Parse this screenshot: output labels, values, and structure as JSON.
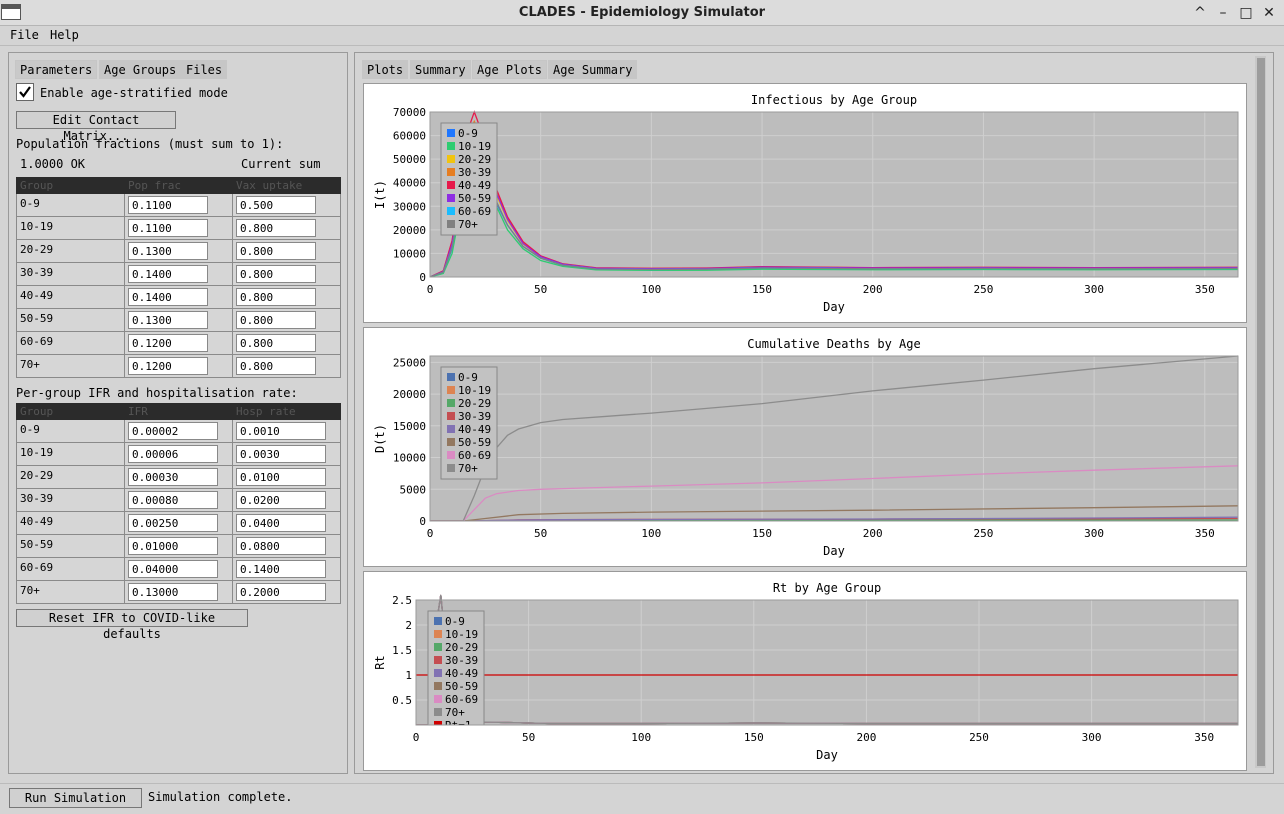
{
  "window": {
    "title": "CLADES - Epidemiology Simulator",
    "min_glyph": "–",
    "max_glyph": "□",
    "restore_glyph": "^",
    "close_glyph": "✕"
  },
  "menu": {
    "file": "File",
    "help": "Help"
  },
  "left_tabs": [
    "Parameters",
    "Age Groups",
    "Files"
  ],
  "age_mode": {
    "label": "Enable age-stratified mode",
    "checked": true
  },
  "edit_matrix_button": "Edit Contact Matrix...",
  "pop_section": {
    "heading": "Population fractions (must sum to 1):",
    "sum_value": "1.0000 OK",
    "sum_label": "Current sum",
    "headers": [
      "Group",
      "Pop frac",
      "Vax uptake"
    ],
    "rows": [
      {
        "group": "0-9",
        "pop": "0.1100",
        "vax": "0.500"
      },
      {
        "group": "10-19",
        "pop": "0.1100",
        "vax": "0.800"
      },
      {
        "group": "20-29",
        "pop": "0.1300",
        "vax": "0.800"
      },
      {
        "group": "30-39",
        "pop": "0.1400",
        "vax": "0.800"
      },
      {
        "group": "40-49",
        "pop": "0.1400",
        "vax": "0.800"
      },
      {
        "group": "50-59",
        "pop": "0.1300",
        "vax": "0.800"
      },
      {
        "group": "60-69",
        "pop": "0.1200",
        "vax": "0.800"
      },
      {
        "group": "70+",
        "pop": "0.1200",
        "vax": "0.800"
      }
    ]
  },
  "ifr_section": {
    "heading": "Per-group IFR and hospitalisation rate:",
    "headers": [
      "Group",
      "IFR",
      "Hosp rate"
    ],
    "rows": [
      {
        "group": "0-9",
        "ifr": "0.00002",
        "hosp": "0.0010"
      },
      {
        "group": "10-19",
        "ifr": "0.00006",
        "hosp": "0.0030"
      },
      {
        "group": "20-29",
        "ifr": "0.00030",
        "hosp": "0.0100"
      },
      {
        "group": "30-39",
        "ifr": "0.00080",
        "hosp": "0.0200"
      },
      {
        "group": "40-49",
        "ifr": "0.00250",
        "hosp": "0.0400"
      },
      {
        "group": "50-59",
        "ifr": "0.01000",
        "hosp": "0.0800"
      },
      {
        "group": "60-69",
        "ifr": "0.04000",
        "hosp": "0.1400"
      },
      {
        "group": "70+",
        "ifr": "0.13000",
        "hosp": "0.2000"
      }
    ]
  },
  "reset_button": "Reset IFR to COVID-like defaults",
  "right_tabs": [
    "Plots",
    "Summary",
    "Age Plots",
    "Age Summary"
  ],
  "status": {
    "run_button": "Run Simulation",
    "message": "Simulation complete."
  },
  "chart_data": [
    {
      "type": "line",
      "title": "Infectious by Age Group",
      "xlabel": "Day",
      "ylabel": "I(t)",
      "xlim": [
        0,
        365
      ],
      "ylim": [
        0,
        70000
      ],
      "xticks": [
        0,
        50,
        100,
        150,
        200,
        250,
        300,
        350
      ],
      "yticks": [
        0,
        10000,
        20000,
        30000,
        40000,
        50000,
        60000,
        70000
      ],
      "grid": true,
      "legend": "top-left",
      "series": [
        {
          "name": "0-9",
          "color": "#1f77ff",
          "x": [
            0,
            6,
            10,
            14,
            17,
            20,
            24,
            28,
            35,
            42,
            50,
            60,
            75,
            100,
            125,
            150,
            200,
            250,
            300,
            365
          ],
          "y": [
            0,
            2000,
            12000,
            32000,
            48000,
            52000,
            47000,
            35000,
            22000,
            13000,
            8000,
            5000,
            3300,
            3000,
            3100,
            3600,
            3300,
            3400,
            3300,
            3400
          ]
        },
        {
          "name": "10-19",
          "color": "#2ecc71",
          "x": [
            0,
            6,
            10,
            14,
            17,
            20,
            24,
            28,
            35,
            42,
            50,
            60,
            75,
            100,
            125,
            150,
            200,
            250,
            300,
            365
          ],
          "y": [
            0,
            1500,
            10000,
            30000,
            45000,
            50000,
            46000,
            34000,
            20000,
            12000,
            7000,
            4500,
            3000,
            2800,
            2900,
            3300,
            3100,
            3200,
            3100,
            3200
          ]
        },
        {
          "name": "20-29",
          "color": "#f1c40f",
          "x": [
            0,
            6,
            10,
            14,
            17,
            20,
            24,
            28,
            35,
            42,
            50,
            60,
            75,
            100,
            125,
            150,
            200,
            250,
            300,
            365
          ],
          "y": [
            0,
            2200,
            14000,
            36000,
            54000,
            60000,
            54000,
            39000,
            24000,
            14000,
            8500,
            5300,
            3600,
            3400,
            3500,
            4100,
            3700,
            3800,
            3700,
            3800
          ]
        },
        {
          "name": "30-39",
          "color": "#e67e22",
          "x": [
            0,
            6,
            10,
            14,
            17,
            20,
            24,
            28,
            35,
            42,
            50,
            60,
            75,
            100,
            125,
            150,
            200,
            250,
            300,
            365
          ],
          "y": [
            0,
            2500,
            15000,
            40000,
            60000,
            66000,
            58000,
            41000,
            25000,
            14500,
            8800,
            5500,
            3800,
            3600,
            3700,
            4300,
            3900,
            4000,
            3900,
            4000
          ]
        },
        {
          "name": "40-49",
          "color": "#e6194b",
          "x": [
            0,
            6,
            10,
            14,
            17,
            20,
            24,
            28,
            35,
            42,
            50,
            60,
            75,
            100,
            125,
            150,
            200,
            250,
            300,
            365
          ],
          "y": [
            0,
            2600,
            15500,
            41000,
            62000,
            70000,
            60000,
            42000,
            25500,
            15000,
            9000,
            5600,
            3900,
            3700,
            3800,
            4400,
            4000,
            4100,
            4000,
            4100
          ]
        },
        {
          "name": "50-59",
          "color": "#8e2de2",
          "x": [
            0,
            6,
            10,
            14,
            17,
            20,
            24,
            28,
            35,
            42,
            50,
            60,
            75,
            100,
            125,
            150,
            200,
            250,
            300,
            365
          ],
          "y": [
            0,
            2300,
            14000,
            37000,
            55000,
            61000,
            55000,
            40000,
            24500,
            14200,
            8600,
            5400,
            3700,
            3500,
            3600,
            4200,
            3800,
            3900,
            3800,
            3900
          ]
        },
        {
          "name": "60-69",
          "color": "#1abcfe",
          "x": [
            0,
            6,
            10,
            14,
            17,
            20,
            24,
            28,
            35,
            42,
            50,
            60,
            75,
            100,
            125,
            150,
            200,
            250,
            300,
            365
          ],
          "y": [
            0,
            2000,
            12500,
            33000,
            50000,
            55000,
            50000,
            36000,
            22000,
            13000,
            8000,
            5000,
            3400,
            3200,
            3300,
            3800,
            3500,
            3600,
            3500,
            3600
          ]
        },
        {
          "name": "70+",
          "color": "#808080",
          "x": [
            0,
            6,
            10,
            14,
            17,
            20,
            24,
            28,
            35,
            42,
            50,
            60,
            75,
            100,
            125,
            150,
            200,
            250,
            300,
            365
          ],
          "y": [
            0,
            2000,
            12500,
            33000,
            49000,
            54000,
            49000,
            36000,
            22000,
            13000,
            8000,
            5000,
            3400,
            3200,
            3300,
            3800,
            3500,
            3600,
            3500,
            3600
          ]
        }
      ]
    },
    {
      "type": "line",
      "title": "Cumulative Deaths by Age",
      "xlabel": "Day",
      "ylabel": "D(t)",
      "xlim": [
        0,
        365
      ],
      "ylim": [
        0,
        26000
      ],
      "xticks": [
        0,
        50,
        100,
        150,
        200,
        250,
        300,
        350
      ],
      "yticks": [
        0,
        5000,
        10000,
        15000,
        20000,
        25000
      ],
      "grid": true,
      "legend": "top-left",
      "series": [
        {
          "name": "0-9",
          "color": "#4c72b0",
          "x": [
            0,
            15,
            25,
            40,
            60,
            100,
            200,
            300,
            365
          ],
          "y": [
            0,
            0,
            2,
            5,
            6,
            7,
            9,
            11,
            12
          ]
        },
        {
          "name": "10-19",
          "color": "#dd8452",
          "x": [
            0,
            15,
            25,
            40,
            60,
            100,
            200,
            300,
            365
          ],
          "y": [
            0,
            0,
            5,
            14,
            18,
            20,
            25,
            30,
            33
          ]
        },
        {
          "name": "20-29",
          "color": "#55a868",
          "x": [
            0,
            15,
            25,
            40,
            60,
            100,
            200,
            300,
            365
          ],
          "y": [
            0,
            0,
            25,
            70,
            85,
            95,
            120,
            140,
            155
          ]
        },
        {
          "name": "30-39",
          "color": "#c44e52",
          "x": [
            0,
            15,
            25,
            40,
            60,
            100,
            200,
            300,
            365
          ],
          "y": [
            0,
            0,
            60,
            180,
            220,
            245,
            300,
            350,
            390
          ]
        },
        {
          "name": "40-49",
          "color": "#8172b3",
          "x": [
            0,
            15,
            25,
            40,
            60,
            100,
            200,
            300,
            365
          ],
          "y": [
            0,
            0,
            50,
            160,
            200,
            230,
            320,
            480,
            600
          ]
        },
        {
          "name": "50-59",
          "color": "#937860",
          "x": [
            0,
            15,
            25,
            40,
            60,
            100,
            200,
            300,
            365
          ],
          "y": [
            0,
            0,
            400,
            1000,
            1200,
            1400,
            1700,
            2100,
            2400
          ]
        },
        {
          "name": "60-69",
          "color": "#da8bc3",
          "x": [
            0,
            15,
            20,
            25,
            30,
            40,
            50,
            60,
            100,
            150,
            200,
            250,
            300,
            365
          ],
          "y": [
            0,
            0,
            1800,
            3600,
            4300,
            4800,
            5000,
            5100,
            5500,
            6000,
            6700,
            7400,
            8000,
            8700
          ]
        },
        {
          "name": "70+",
          "color": "#8c8c8c",
          "x": [
            0,
            15,
            20,
            25,
            30,
            35,
            40,
            50,
            60,
            80,
            100,
            150,
            200,
            250,
            300,
            365
          ],
          "y": [
            0,
            0,
            4000,
            8500,
            11500,
            13500,
            14500,
            15500,
            16000,
            16500,
            17000,
            18500,
            20500,
            22200,
            24000,
            26000
          ]
        }
      ]
    },
    {
      "type": "line",
      "title": "Rt by Age Group",
      "xlabel": "Day",
      "ylabel": "Rt",
      "xlim": [
        0,
        365
      ],
      "ylim": [
        0,
        2.5
      ],
      "xticks": [
        0,
        50,
        100,
        150,
        200,
        250,
        300,
        350
      ],
      "yticks": [
        0.5,
        1,
        1.5,
        2,
        2.5
      ],
      "grid": true,
      "legend": "top-left",
      "series": [
        {
          "name": "0-9",
          "color": "#4c72b0",
          "x": [
            0,
            8,
            9,
            10,
            11,
            14,
            20,
            30,
            60,
            100,
            150,
            200,
            250,
            300,
            365
          ],
          "y": [
            0,
            0,
            0.8,
            2.3,
            2.6,
            1.2,
            0.3,
            0.06,
            0.03,
            0.03,
            0.04,
            0.03,
            0.03,
            0.03,
            0.03
          ]
        },
        {
          "name": "10-19",
          "color": "#dd8452",
          "x": [
            0,
            8,
            9,
            10,
            11,
            14,
            20,
            30,
            60,
            100,
            150,
            200,
            250,
            300,
            365
          ],
          "y": [
            0,
            0,
            0.8,
            2.3,
            2.6,
            1.2,
            0.3,
            0.06,
            0.03,
            0.03,
            0.04,
            0.03,
            0.03,
            0.03,
            0.03
          ]
        },
        {
          "name": "20-29",
          "color": "#55a868",
          "x": [
            0,
            8,
            9,
            10,
            11,
            14,
            20,
            30,
            60,
            100,
            150,
            200,
            250,
            300,
            365
          ],
          "y": [
            0,
            0,
            0.8,
            2.3,
            2.6,
            1.2,
            0.3,
            0.06,
            0.03,
            0.03,
            0.04,
            0.03,
            0.03,
            0.03,
            0.03
          ]
        },
        {
          "name": "30-39",
          "color": "#c44e52",
          "x": [
            0,
            8,
            9,
            10,
            11,
            14,
            20,
            30,
            60,
            100,
            150,
            200,
            250,
            300,
            365
          ],
          "y": [
            0,
            0,
            0.8,
            2.3,
            2.6,
            1.2,
            0.3,
            0.06,
            0.03,
            0.03,
            0.04,
            0.03,
            0.03,
            0.03,
            0.03
          ]
        },
        {
          "name": "40-49",
          "color": "#8172b3",
          "x": [
            0,
            8,
            9,
            10,
            11,
            14,
            20,
            30,
            60,
            100,
            150,
            200,
            250,
            300,
            365
          ],
          "y": [
            0,
            0,
            0.8,
            2.3,
            2.6,
            1.2,
            0.3,
            0.06,
            0.03,
            0.03,
            0.04,
            0.03,
            0.03,
            0.03,
            0.03
          ]
        },
        {
          "name": "50-59",
          "color": "#937860",
          "x": [
            0,
            8,
            9,
            10,
            11,
            14,
            20,
            30,
            60,
            100,
            150,
            200,
            250,
            300,
            365
          ],
          "y": [
            0,
            0,
            0.8,
            2.3,
            2.6,
            1.2,
            0.3,
            0.06,
            0.03,
            0.03,
            0.04,
            0.03,
            0.03,
            0.03,
            0.03
          ]
        },
        {
          "name": "60-69",
          "color": "#da8bc3",
          "x": [
            0,
            8,
            9,
            10,
            11,
            14,
            20,
            30,
            60,
            100,
            150,
            200,
            250,
            300,
            365
          ],
          "y": [
            0,
            0,
            0.8,
            2.3,
            2.6,
            1.2,
            0.3,
            0.06,
            0.03,
            0.03,
            0.04,
            0.03,
            0.03,
            0.03,
            0.03
          ]
        },
        {
          "name": "70+",
          "color": "#8c8c8c",
          "x": [
            0,
            8,
            9,
            10,
            11,
            14,
            20,
            30,
            60,
            100,
            150,
            200,
            250,
            300,
            365
          ],
          "y": [
            0,
            0,
            0.8,
            2.3,
            2.6,
            1.2,
            0.3,
            0.06,
            0.03,
            0.03,
            0.04,
            0.03,
            0.03,
            0.03,
            0.03
          ]
        },
        {
          "name": "Rt=1",
          "color": "#d00000",
          "x": [
            0,
            365
          ],
          "y": [
            1,
            1
          ]
        }
      ]
    }
  ]
}
